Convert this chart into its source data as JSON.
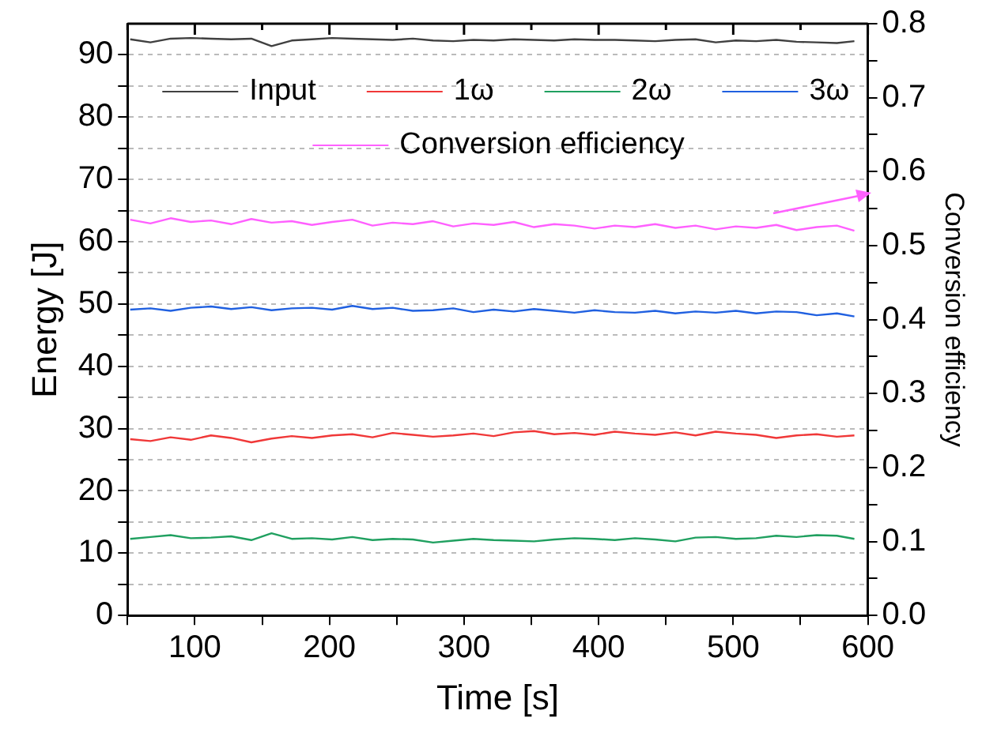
{
  "chart_data": {
    "type": "line",
    "xlabel": "Time [s]",
    "ylabel": "Energy [J]",
    "y2label": "Conversion efficiency",
    "x": [
      52,
      67,
      82,
      97,
      112,
      127,
      142,
      157,
      172,
      187,
      202,
      217,
      232,
      247,
      262,
      277,
      292,
      307,
      322,
      337,
      352,
      367,
      382,
      397,
      412,
      427,
      442,
      457,
      472,
      487,
      502,
      517,
      532,
      547,
      562,
      577,
      590
    ],
    "series": [
      {
        "name": "Input",
        "color": "#404040",
        "values": [
          92.5,
          92.0,
          92.6,
          92.7,
          92.6,
          92.5,
          92.6,
          91.4,
          92.3,
          92.5,
          92.7,
          92.6,
          92.5,
          92.4,
          92.6,
          92.3,
          92.2,
          92.4,
          92.3,
          92.5,
          92.4,
          92.3,
          92.5,
          92.4,
          92.4,
          92.3,
          92.2,
          92.4,
          92.5,
          92.0,
          92.3,
          92.2,
          92.4,
          92.1,
          92.0,
          91.9,
          92.2
        ]
      },
      {
        "name": "1ω",
        "color": "#f03838",
        "values": [
          28.3,
          28.0,
          28.6,
          28.2,
          28.9,
          28.5,
          27.8,
          28.4,
          28.8,
          28.5,
          28.9,
          29.1,
          28.6,
          29.3,
          29.0,
          28.7,
          28.9,
          29.2,
          28.8,
          29.4,
          29.6,
          29.1,
          29.3,
          29.0,
          29.5,
          29.2,
          29.0,
          29.4,
          28.9,
          29.5,
          29.2,
          29.0,
          28.5,
          28.9,
          29.1,
          28.7,
          28.9
        ]
      },
      {
        "name": "2ω",
        "color": "#20a060",
        "values": [
          12.3,
          12.6,
          12.9,
          12.4,
          12.5,
          12.7,
          12.1,
          13.2,
          12.3,
          12.4,
          12.2,
          12.6,
          12.1,
          12.3,
          12.2,
          11.7,
          12.0,
          12.3,
          12.1,
          12.0,
          11.9,
          12.2,
          12.4,
          12.3,
          12.1,
          12.4,
          12.2,
          11.9,
          12.5,
          12.6,
          12.3,
          12.4,
          12.8,
          12.6,
          12.9,
          12.8,
          12.3
        ]
      },
      {
        "name": "3ω",
        "color": "#2060e0",
        "values": [
          49.1,
          49.3,
          48.9,
          49.4,
          49.6,
          49.2,
          49.5,
          49.0,
          49.3,
          49.4,
          49.1,
          49.7,
          49.2,
          49.4,
          48.9,
          49.0,
          49.3,
          48.7,
          49.1,
          48.8,
          49.2,
          48.9,
          48.6,
          49.0,
          48.7,
          48.6,
          48.9,
          48.5,
          48.8,
          48.6,
          48.9,
          48.5,
          48.8,
          48.7,
          48.2,
          48.5,
          48.0
        ]
      },
      {
        "name": "Conversion efficiency",
        "color": "#ff60ff",
        "axis": "y2",
        "values": [
          0.535,
          0.53,
          0.537,
          0.532,
          0.534,
          0.529,
          0.536,
          0.531,
          0.533,
          0.528,
          0.532,
          0.535,
          0.527,
          0.531,
          0.529,
          0.533,
          0.526,
          0.53,
          0.528,
          0.532,
          0.525,
          0.529,
          0.527,
          0.523,
          0.527,
          0.525,
          0.529,
          0.524,
          0.527,
          0.522,
          0.526,
          0.524,
          0.528,
          0.521,
          0.525,
          0.527,
          0.52
        ]
      }
    ],
    "xlim": [
      50,
      600
    ],
    "xticks": [
      {
        "value": 50,
        "label": null
      },
      100,
      {
        "value": 150,
        "label": null
      },
      200,
      {
        "value": 250,
        "label": null
      },
      300,
      {
        "value": 350,
        "label": null
      },
      400,
      {
        "value": 450,
        "label": null
      },
      500,
      {
        "value": 550,
        "label": null
      },
      600
    ],
    "ylim": [
      0,
      95
    ],
    "yticks": [
      0,
      {
        "value": 5,
        "label": null
      },
      10,
      {
        "value": 15,
        "label": null
      },
      20,
      {
        "value": 25,
        "label": null
      },
      30,
      {
        "value": 35,
        "label": null
      },
      40,
      {
        "value": 45,
        "label": null
      },
      50,
      {
        "value": 55,
        "label": null
      },
      60,
      {
        "value": 65,
        "label": null
      },
      70,
      {
        "value": 75,
        "label": null
      },
      80,
      {
        "value": 85,
        "label": null
      },
      90
    ],
    "y2lim": [
      0,
      0.8
    ],
    "y2ticks": [
      {
        "value": 0,
        "label": "0.0"
      },
      {
        "value": 0.05,
        "label": null
      },
      0.1,
      {
        "value": 0.15,
        "label": null
      },
      0.2,
      {
        "value": 0.25,
        "label": null
      },
      0.3,
      {
        "value": 0.35,
        "label": null
      },
      0.4,
      {
        "value": 0.45,
        "label": null
      },
      0.5,
      {
        "value": 0.55,
        "label": null
      },
      0.6,
      {
        "value": 0.65,
        "label": null
      },
      0.7,
      {
        "value": 0.75,
        "label": null
      },
      0.8
    ],
    "grid": "y",
    "legend": "top",
    "marker": "none",
    "line_style": "solid"
  }
}
